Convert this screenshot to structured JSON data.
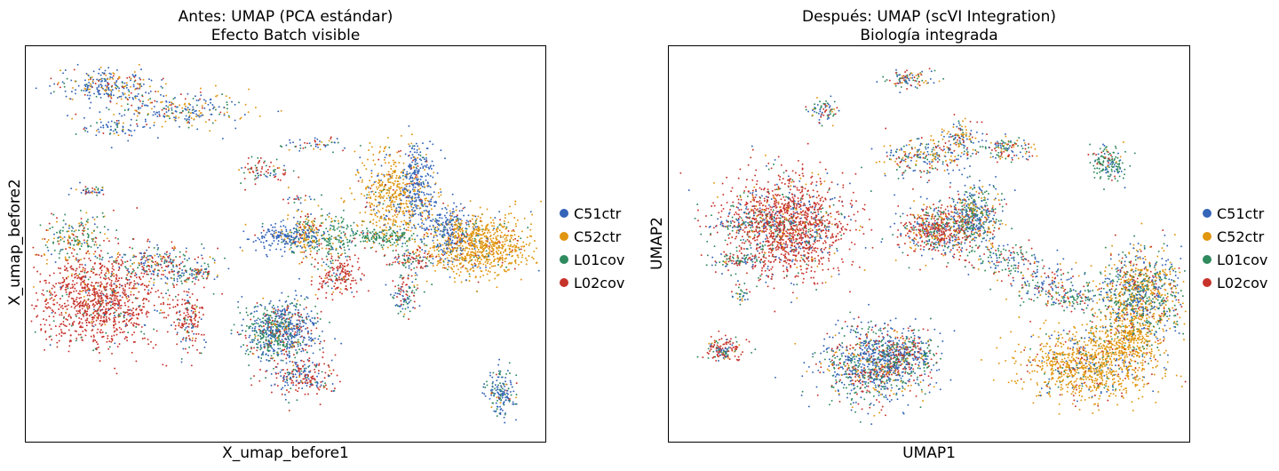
{
  "chart_data": [
    {
      "type": "scatter",
      "title_line1": "Antes: UMAP (PCA estándar)",
      "title_line2": "Efecto Batch visible",
      "xlabel": "X_umap_before1",
      "ylabel": "X_umap_before2",
      "xlim": [
        0,
        100
      ],
      "ylim": [
        0,
        100
      ],
      "grid": false,
      "legend_position": "right",
      "legend": [
        "C51ctr",
        "C52ctr",
        "L01cov",
        "L02cov"
      ],
      "clusters": [
        {
          "x": 12,
          "y": 64,
          "sx": 1.5,
          "sy": 0.7,
          "n": 40,
          "mix": [
            0.35,
            0.05,
            0.3,
            0.3
          ]
        },
        {
          "x": 17,
          "y": 80,
          "sx": 3.5,
          "sy": 1.2,
          "n": 60,
          "mix": [
            0.6,
            0.15,
            0.15,
            0.1
          ]
        },
        {
          "x": 15,
          "y": 91,
          "sx": 4.5,
          "sy": 2.0,
          "n": 260,
          "mix": [
            0.55,
            0.25,
            0.1,
            0.1
          ]
        },
        {
          "x": 28,
          "y": 85,
          "sx": 7.0,
          "sy": 2.5,
          "n": 260,
          "mix": [
            0.5,
            0.25,
            0.15,
            0.1
          ]
        },
        {
          "x": 9,
          "y": 52,
          "sx": 3.5,
          "sy": 2.8,
          "n": 180,
          "mix": [
            0.1,
            0.35,
            0.45,
            0.1
          ]
        },
        {
          "x": 13,
          "y": 36,
          "sx": 6.5,
          "sy": 6.0,
          "n": 1100,
          "mix": [
            0.05,
            0.05,
            0.05,
            0.85
          ]
        },
        {
          "x": 25,
          "y": 45,
          "sx": 4.5,
          "sy": 2.5,
          "n": 220,
          "mix": [
            0.4,
            0.1,
            0.25,
            0.25
          ]
        },
        {
          "x": 31,
          "y": 42,
          "sx": 3.0,
          "sy": 1.5,
          "n": 70,
          "mix": [
            0.3,
            0.1,
            0.3,
            0.3
          ]
        },
        {
          "x": 31,
          "y": 30,
          "sx": 1.5,
          "sy": 4.0,
          "n": 160,
          "mix": [
            0.15,
            0.05,
            0.1,
            0.7
          ]
        },
        {
          "x": 45,
          "y": 69,
          "sx": 3.0,
          "sy": 1.8,
          "n": 80,
          "mix": [
            0.1,
            0.1,
            0.3,
            0.5
          ]
        },
        {
          "x": 56,
          "y": 76,
          "sx": 3.0,
          "sy": 1.0,
          "n": 50,
          "mix": [
            0.35,
            0.2,
            0.2,
            0.25
          ]
        },
        {
          "x": 50,
          "y": 52,
          "sx": 3.5,
          "sy": 1.5,
          "n": 220,
          "mix": [
            0.75,
            0.1,
            0.1,
            0.05
          ]
        },
        {
          "x": 54,
          "y": 53,
          "sx": 1.5,
          "sy": 3.5,
          "n": 160,
          "mix": [
            0.1,
            0.55,
            0.25,
            0.1
          ]
        },
        {
          "x": 59,
          "y": 52,
          "sx": 2.0,
          "sy": 3.0,
          "n": 140,
          "mix": [
            0.1,
            0.15,
            0.65,
            0.1
          ]
        },
        {
          "x": 60,
          "y": 42,
          "sx": 2.2,
          "sy": 2.8,
          "n": 170,
          "mix": [
            0.05,
            0.05,
            0.05,
            0.85
          ]
        },
        {
          "x": 50,
          "y": 28,
          "sx": 3.5,
          "sy": 4.0,
          "n": 520,
          "mix": [
            0.55,
            0.05,
            0.2,
            0.2
          ]
        },
        {
          "x": 47,
          "y": 27,
          "sx": 2.5,
          "sy": 3.5,
          "n": 220,
          "mix": [
            0.2,
            0.05,
            0.7,
            0.05
          ]
        },
        {
          "x": 53,
          "y": 16,
          "sx": 3.5,
          "sy": 2.5,
          "n": 240,
          "mix": [
            0.35,
            0.05,
            0.1,
            0.5
          ]
        },
        {
          "x": 71,
          "y": 63,
          "sx": 3.5,
          "sy": 5.5,
          "n": 520,
          "mix": [
            0.1,
            0.8,
            0.05,
            0.05
          ]
        },
        {
          "x": 76,
          "y": 66,
          "sx": 1.8,
          "sy": 5.5,
          "n": 260,
          "mix": [
            0.85,
            0.05,
            0.05,
            0.05
          ]
        },
        {
          "x": 69,
          "y": 52,
          "sx": 3.5,
          "sy": 1.2,
          "n": 160,
          "mix": [
            0.05,
            0.05,
            0.85,
            0.05
          ]
        },
        {
          "x": 82,
          "y": 54,
          "sx": 2.2,
          "sy": 3.5,
          "n": 220,
          "mix": [
            0.85,
            0.05,
            0.05,
            0.05
          ]
        },
        {
          "x": 88,
          "y": 50,
          "sx": 5.0,
          "sy": 4.0,
          "n": 850,
          "mix": [
            0.05,
            0.85,
            0.05,
            0.05
          ]
        },
        {
          "x": 75,
          "y": 46,
          "sx": 3.0,
          "sy": 1.5,
          "n": 120,
          "mix": [
            0.2,
            0.1,
            0.3,
            0.4
          ]
        },
        {
          "x": 73,
          "y": 38,
          "sx": 1.5,
          "sy": 3.0,
          "n": 100,
          "mix": [
            0.3,
            0.05,
            0.35,
            0.3
          ]
        },
        {
          "x": 92,
          "y": 12,
          "sx": 1.5,
          "sy": 3.0,
          "n": 160,
          "mix": [
            0.6,
            0.05,
            0.3,
            0.05
          ]
        },
        {
          "x": 52,
          "y": 62,
          "sx": 2.5,
          "sy": 0.5,
          "n": 20,
          "mix": [
            0.4,
            0.0,
            0.3,
            0.3
          ]
        },
        {
          "x": 33,
          "y": 43,
          "sx": 1.2,
          "sy": 0.4,
          "n": 20,
          "mix": [
            0.3,
            0.2,
            0.2,
            0.3
          ]
        }
      ]
    },
    {
      "type": "scatter",
      "title_line1": "Después: UMAP (scVI Integration)",
      "title_line2": "Biología integrada",
      "xlabel": "UMAP1",
      "ylabel": "UMAP2",
      "xlim": [
        0,
        100
      ],
      "ylim": [
        0,
        100
      ],
      "grid": false,
      "legend_position": "right",
      "legend": [
        "C51ctr",
        "C52ctr",
        "L01cov",
        "L02cov"
      ],
      "clusters": [
        {
          "x": 46,
          "y": 93,
          "sx": 2.5,
          "sy": 1.2,
          "n": 90,
          "mix": [
            0.25,
            0.2,
            0.25,
            0.3
          ]
        },
        {
          "x": 29,
          "y": 85,
          "sx": 1.5,
          "sy": 1.5,
          "n": 70,
          "mix": [
            0.35,
            0.1,
            0.35,
            0.2
          ]
        },
        {
          "x": 48,
          "y": 73,
          "sx": 4.0,
          "sy": 2.5,
          "n": 220,
          "mix": [
            0.3,
            0.3,
            0.2,
            0.2
          ]
        },
        {
          "x": 56,
          "y": 77,
          "sx": 1.8,
          "sy": 2.5,
          "n": 120,
          "mix": [
            0.4,
            0.3,
            0.15,
            0.15
          ]
        },
        {
          "x": 65,
          "y": 75,
          "sx": 2.5,
          "sy": 1.5,
          "n": 120,
          "mix": [
            0.3,
            0.3,
            0.2,
            0.2
          ]
        },
        {
          "x": 85,
          "y": 71,
          "sx": 2.0,
          "sy": 2.5,
          "n": 150,
          "mix": [
            0.15,
            0.05,
            0.75,
            0.05
          ]
        },
        {
          "x": 22,
          "y": 55,
          "sx": 6.0,
          "sy": 6.5,
          "n": 1500,
          "mix": [
            0.12,
            0.08,
            0.1,
            0.7
          ]
        },
        {
          "x": 15,
          "y": 55,
          "sx": 4.0,
          "sy": 1.5,
          "n": 100,
          "mix": [
            0.3,
            0.05,
            0.45,
            0.2
          ]
        },
        {
          "x": 13,
          "y": 46,
          "sx": 3.0,
          "sy": 1.0,
          "n": 90,
          "mix": [
            0.3,
            0.05,
            0.45,
            0.2
          ]
        },
        {
          "x": 13,
          "y": 37,
          "sx": 0.8,
          "sy": 1.2,
          "n": 30,
          "mix": [
            0.4,
            0.05,
            0.35,
            0.2
          ]
        },
        {
          "x": 52,
          "y": 54,
          "sx": 4.0,
          "sy": 3.5,
          "n": 600,
          "mix": [
            0.2,
            0.15,
            0.15,
            0.5
          ]
        },
        {
          "x": 59,
          "y": 58,
          "sx": 2.5,
          "sy": 3.5,
          "n": 400,
          "mix": [
            0.35,
            0.2,
            0.35,
            0.1
          ]
        },
        {
          "x": 64,
          "y": 46,
          "sx": 3.5,
          "sy": 2.0,
          "n": 140,
          "mix": [
            0.3,
            0.1,
            0.35,
            0.25
          ]
        },
        {
          "x": 72,
          "y": 40,
          "sx": 3.5,
          "sy": 3.0,
          "n": 140,
          "mix": [
            0.35,
            0.1,
            0.3,
            0.25
          ]
        },
        {
          "x": 91,
          "y": 37,
          "sx": 4.5,
          "sy": 5.5,
          "n": 1000,
          "mix": [
            0.25,
            0.35,
            0.3,
            0.1
          ]
        },
        {
          "x": 78,
          "y": 36,
          "sx": 2.5,
          "sy": 1.5,
          "n": 90,
          "mix": [
            0.3,
            0.05,
            0.45,
            0.2
          ]
        },
        {
          "x": 81,
          "y": 19,
          "sx": 6.5,
          "sy": 4.5,
          "n": 1000,
          "mix": [
            0.08,
            0.8,
            0.05,
            0.07
          ]
        },
        {
          "x": 89,
          "y": 26,
          "sx": 3.0,
          "sy": 3.0,
          "n": 300,
          "mix": [
            0.05,
            0.85,
            0.05,
            0.05
          ]
        },
        {
          "x": 39,
          "y": 19,
          "sx": 5.0,
          "sy": 5.0,
          "n": 1000,
          "mix": [
            0.45,
            0.1,
            0.25,
            0.2
          ]
        },
        {
          "x": 45,
          "y": 22,
          "sx": 3.0,
          "sy": 2.5,
          "n": 250,
          "mix": [
            0.35,
            0.1,
            0.3,
            0.25
          ]
        },
        {
          "x": 10,
          "y": 23,
          "sx": 2.0,
          "sy": 1.5,
          "n": 140,
          "mix": [
            0.15,
            0.05,
            0.2,
            0.6
          ]
        }
      ]
    }
  ],
  "colors": {
    "C51ctr": "#3465b8",
    "C52ctr": "#e0960f",
    "L01cov": "#2f8a5e",
    "L02cov": "#c7332b"
  }
}
